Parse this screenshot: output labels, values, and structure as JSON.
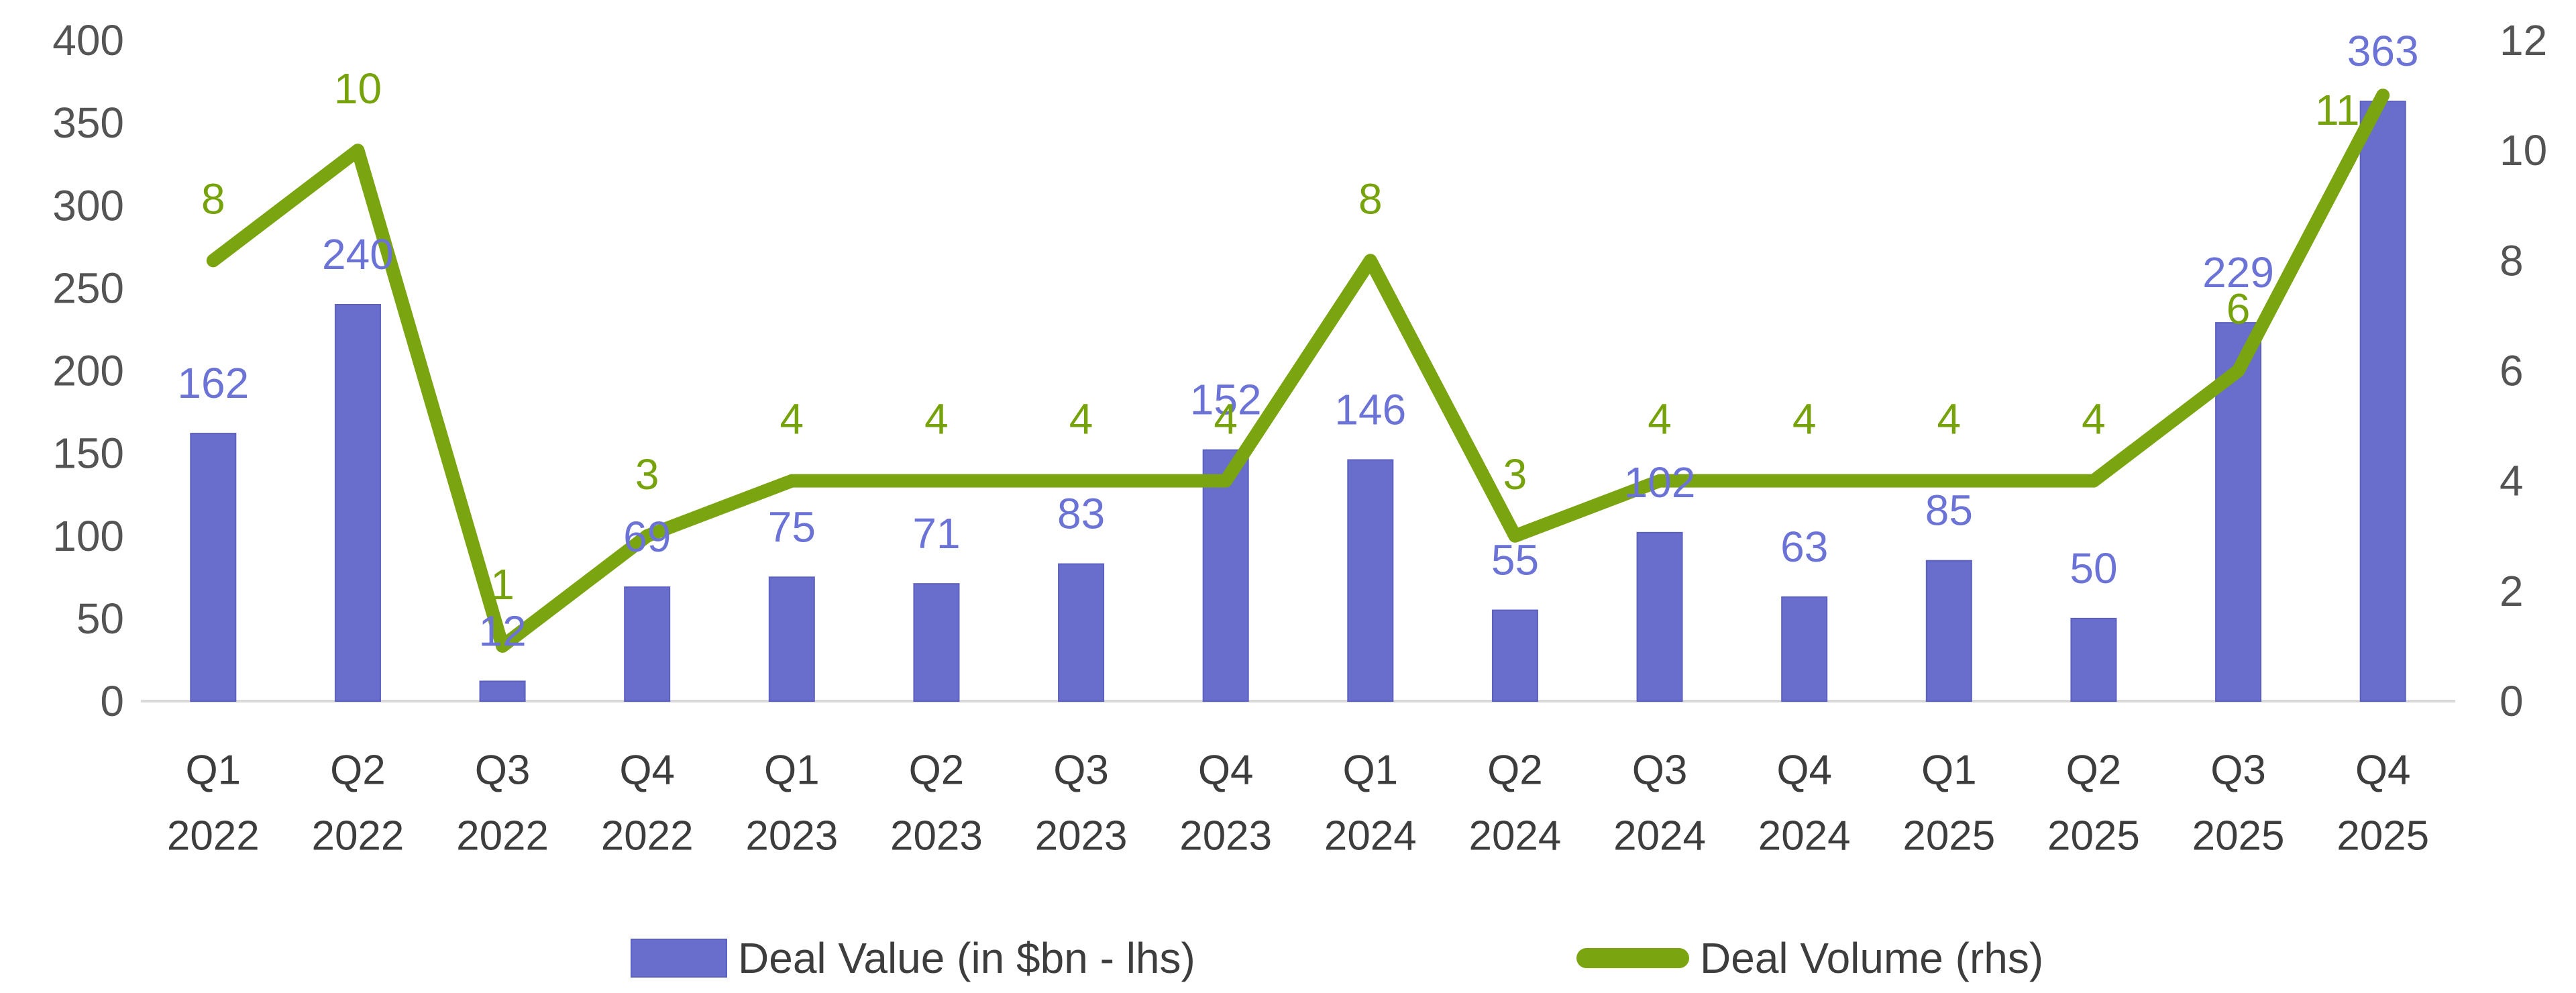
{
  "chart_data": {
    "type": "bar",
    "subtype": "combo-bar-line-dual-axis",
    "title": "",
    "xlabel": "",
    "ylabel": "",
    "grid": false,
    "legend_position": "bottom",
    "categories": [
      {
        "quarter": "Q1",
        "year": "2022"
      },
      {
        "quarter": "Q2",
        "year": "2022"
      },
      {
        "quarter": "Q3",
        "year": "2022"
      },
      {
        "quarter": "Q4",
        "year": "2022"
      },
      {
        "quarter": "Q1",
        "year": "2023"
      },
      {
        "quarter": "Q2",
        "year": "2023"
      },
      {
        "quarter": "Q3",
        "year": "2023"
      },
      {
        "quarter": "Q4",
        "year": "2023"
      },
      {
        "quarter": "Q1",
        "year": "2024"
      },
      {
        "quarter": "Q2",
        "year": "2024"
      },
      {
        "quarter": "Q3",
        "year": "2024"
      },
      {
        "quarter": "Q4",
        "year": "2024"
      },
      {
        "quarter": "Q1",
        "year": "2025"
      },
      {
        "quarter": "Q2",
        "year": "2025"
      },
      {
        "quarter": "Q3",
        "year": "2025"
      },
      {
        "quarter": "Q4",
        "year": "2025"
      }
    ],
    "series": [
      {
        "name": "Deal Value (in $bn - lhs)",
        "type": "bar",
        "axis": "left",
        "values": [
          162,
          240,
          12,
          69,
          75,
          71,
          83,
          152,
          146,
          55,
          102,
          63,
          85,
          50,
          229,
          363
        ]
      },
      {
        "name": "Deal Volume (rhs)",
        "type": "line",
        "axis": "right",
        "values": [
          8,
          10,
          1,
          3,
          4,
          4,
          4,
          4,
          8,
          3,
          4,
          4,
          4,
          4,
          6,
          11
        ]
      }
    ],
    "left_axis": {
      "min": 0,
      "max": 400,
      "step": 50,
      "ticks": [
        "0",
        "50",
        "100",
        "150",
        "200",
        "250",
        "300",
        "350",
        "400"
      ]
    },
    "right_axis": {
      "min": 0,
      "max": 12,
      "step": 2,
      "ticks": [
        "0",
        "2",
        "4",
        "6",
        "8",
        "10",
        "12"
      ]
    }
  },
  "colors": {
    "bar_fill": "#696DCB",
    "bar_border": "#5C60BE",
    "bar_label": "#6C73D6",
    "line_stroke": "#7AA410",
    "line_label": "#76A30B",
    "axis_tick_label": "#545454",
    "x_axis_label": "#3d3d3d",
    "x_axis_line": "#D9D9D9",
    "background": "#ffffff"
  }
}
